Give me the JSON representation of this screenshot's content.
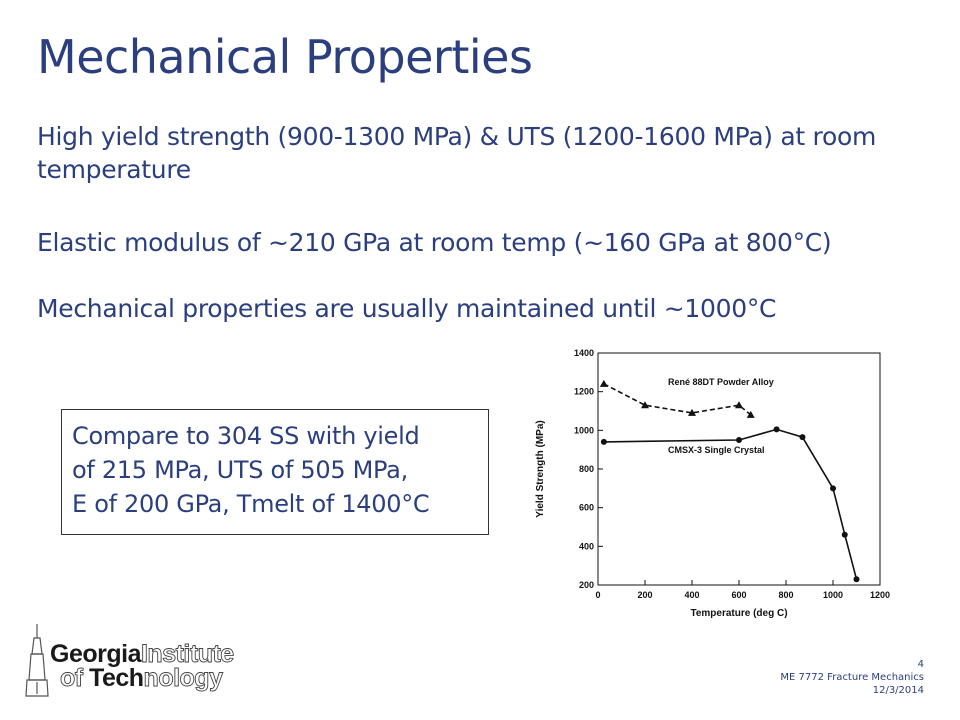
{
  "slide": {
    "title": "Mechanical Properties",
    "bullets": [
      "High yield strength (900-1300 MPa) & UTS (1200-1600 MPa) at room temperature",
      "Elastic modulus of ~210 GPa at room temp (~160 GPa at 800°C)",
      "Mechanical properties are usually maintained until ~1000°C"
    ],
    "compare_box": [
      "Compare to 304 SS with yield",
      "of 215 MPa, UTS of 505 MPa,",
      "E of 200 GPa, Tmelt of 1400°C"
    ]
  },
  "logo": {
    "line1_bold": "Georgia",
    "line1_outline": "Institute",
    "line2_outline_a": "of ",
    "line2_bold": "Tech",
    "line2_outline_b": "nology"
  },
  "footer": {
    "page_number": "4",
    "course": "ME 7772 Fracture Mechanics",
    "date": "12/3/2014"
  },
  "colors": {
    "text_blue": "#2b3f7e",
    "chart_ink": "#111111"
  },
  "chart_data": {
    "type": "line",
    "xlabel": "Temperature (deg C)",
    "ylabel": "Yield Strength (MPa)",
    "xlim": [
      0,
      1200
    ],
    "ylim": [
      200,
      1400
    ],
    "xticks": [
      0,
      200,
      400,
      600,
      800,
      1000,
      1200
    ],
    "yticks": [
      200,
      400,
      600,
      800,
      1000,
      1200,
      1400
    ],
    "grid": false,
    "series": [
      {
        "name": "René 88DT Powder Alloy",
        "style": "dashed",
        "marker": "triangle",
        "points": [
          [
            25,
            1240
          ],
          [
            200,
            1130
          ],
          [
            400,
            1090
          ],
          [
            600,
            1130
          ],
          [
            650,
            1080
          ]
        ]
      },
      {
        "name": "CMSX-3 Single Crystal",
        "style": "solid",
        "marker": "circle",
        "points": [
          [
            25,
            940
          ],
          [
            600,
            950
          ],
          [
            760,
            1005
          ],
          [
            870,
            965
          ],
          [
            1000,
            700
          ],
          [
            1050,
            460
          ],
          [
            1100,
            230
          ]
        ]
      }
    ]
  }
}
